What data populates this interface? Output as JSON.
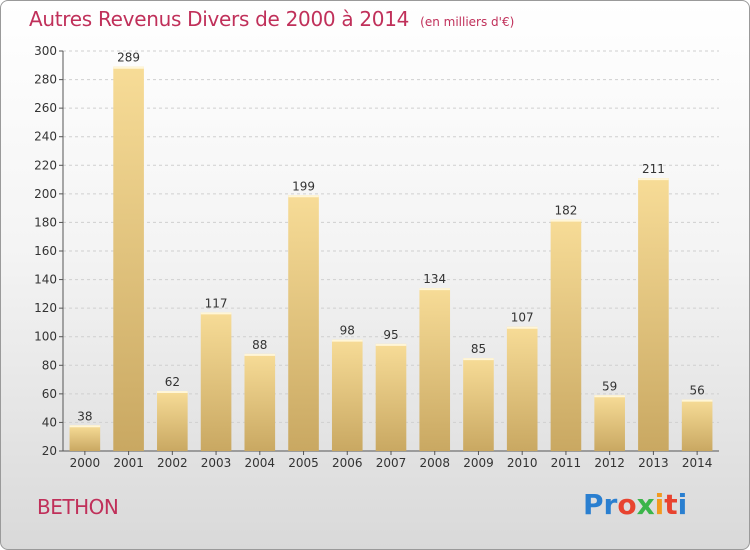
{
  "header": {
    "title": "Autres Revenus Divers de 2000 à 2014",
    "subtitle": "(en milliers d'€)"
  },
  "footer": {
    "location": "BETHON",
    "logo": {
      "letters": [
        "P",
        "r",
        "o",
        "x",
        "i",
        "t",
        "i"
      ],
      "colors": [
        "#2a7fd0",
        "#2a7fd0",
        "#e8432f",
        "#3bb54a",
        "#f29a1f",
        "#e8432f",
        "#2a7fd0"
      ]
    }
  },
  "colors": {
    "accent": "#c0305a",
    "bar_top": "#f7dc97",
    "bar_bottom": "#c9a862",
    "grid": "#cfcfcf"
  },
  "chart_data": {
    "type": "bar",
    "categories": [
      "2000",
      "2001",
      "2002",
      "2003",
      "2004",
      "2005",
      "2006",
      "2007",
      "2008",
      "2009",
      "2010",
      "2011",
      "2012",
      "2013",
      "2014"
    ],
    "values": [
      38,
      289,
      62,
      117,
      88,
      199,
      98,
      95,
      134,
      85,
      107,
      182,
      59,
      211,
      56
    ],
    "ylim": [
      20,
      300
    ],
    "yticks": [
      20,
      40,
      60,
      80,
      100,
      120,
      140,
      160,
      180,
      200,
      220,
      240,
      260,
      280,
      300
    ],
    "grid": true
  }
}
